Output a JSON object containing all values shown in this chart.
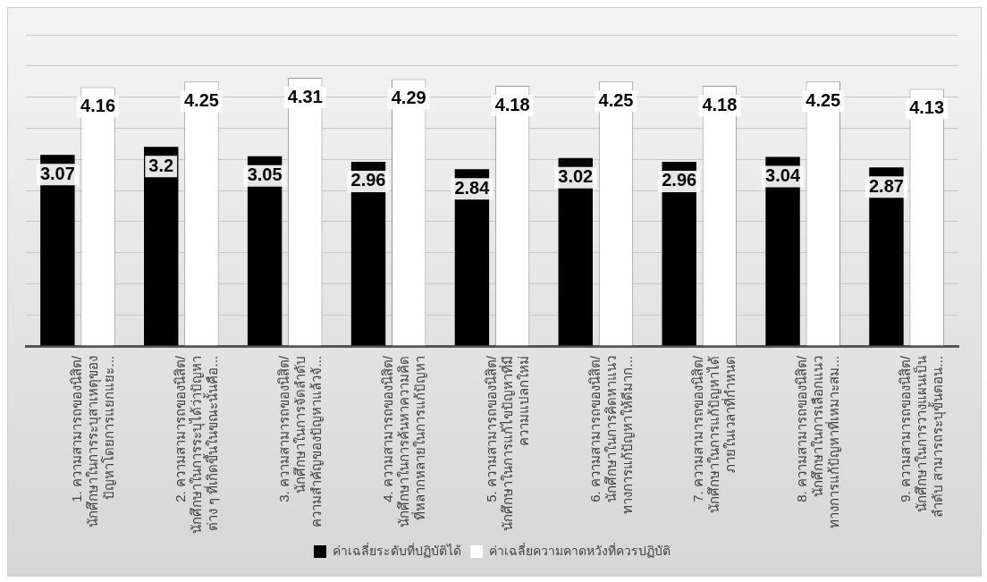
{
  "chart_data": {
    "type": "bar",
    "categories": [
      "1. ความสามารถของนิสิต/\nนักศึกษาในการระบุสาเหตุของ\nปัญหาโดยการแยกแยะ...",
      "2. ความสามารถของนิสิต/\nนักศึกษาในการระบุได้ว่าปัญหา\nต่าง ๆ ที่เกิดขึ้นในขณะนั้นคือ...",
      "3. ความสามารถของนิสิต/\nนักศึกษาในการจัดลำดับ\nความสำคัญของปัญหาแล้วจั...",
      "4. ความสามารถของนิสิต/\nนักศึกษาในการค้นหาความคิด\nที่หลากหลายในการแก้ปัญหา",
      "5. ความสามารถของนิสิต/\nนักศึกษาในการแก้ไขปัญหาที่มี\nความแปลกใหม่",
      "6. ความสามารถของนิสิต/\nนักศึกษาในการคิดหาแนว\nทางการแก้ปัญหาให้ดีมาก...",
      "7. ความสามารถของนิสิต/\nนักศึกษาในการแก้ปัญหาได้\nภายในเวลาที่กำหนด",
      "8. ความสามารถของนิสิต/\nนักศึกษาในการเลือกแนว\nทางการแก้ปัญหาที่เหมาะสม...",
      "9. ความสามารถของนิสิต/\nนักศึกษาในการวางแผนเป็น\nลำดับ สามารถระบุขั้นตอน..."
    ],
    "series": [
      {
        "name": "ค่าเฉลี่ยระดับที่ปฏิบัติได้",
        "color": "#000000",
        "values": [
          3.07,
          3.2,
          3.05,
          2.96,
          2.84,
          3.02,
          2.96,
          3.04,
          2.87
        ]
      },
      {
        "name": "ค่าเฉลี่ยความคาดหวังที่ควรปฏิบัติ",
        "color": "#ffffff",
        "values": [
          4.16,
          4.25,
          4.31,
          4.29,
          4.18,
          4.25,
          4.18,
          4.25,
          4.13
        ]
      }
    ],
    "ylim": [
      0,
      5
    ],
    "yticks": [
      0,
      0.5,
      1,
      1.5,
      2,
      2.5,
      3,
      3.5,
      4,
      4.5,
      5
    ],
    "tick_labels": "x",
    "grid": "y",
    "legend": "bottom",
    "data_labels": true
  }
}
